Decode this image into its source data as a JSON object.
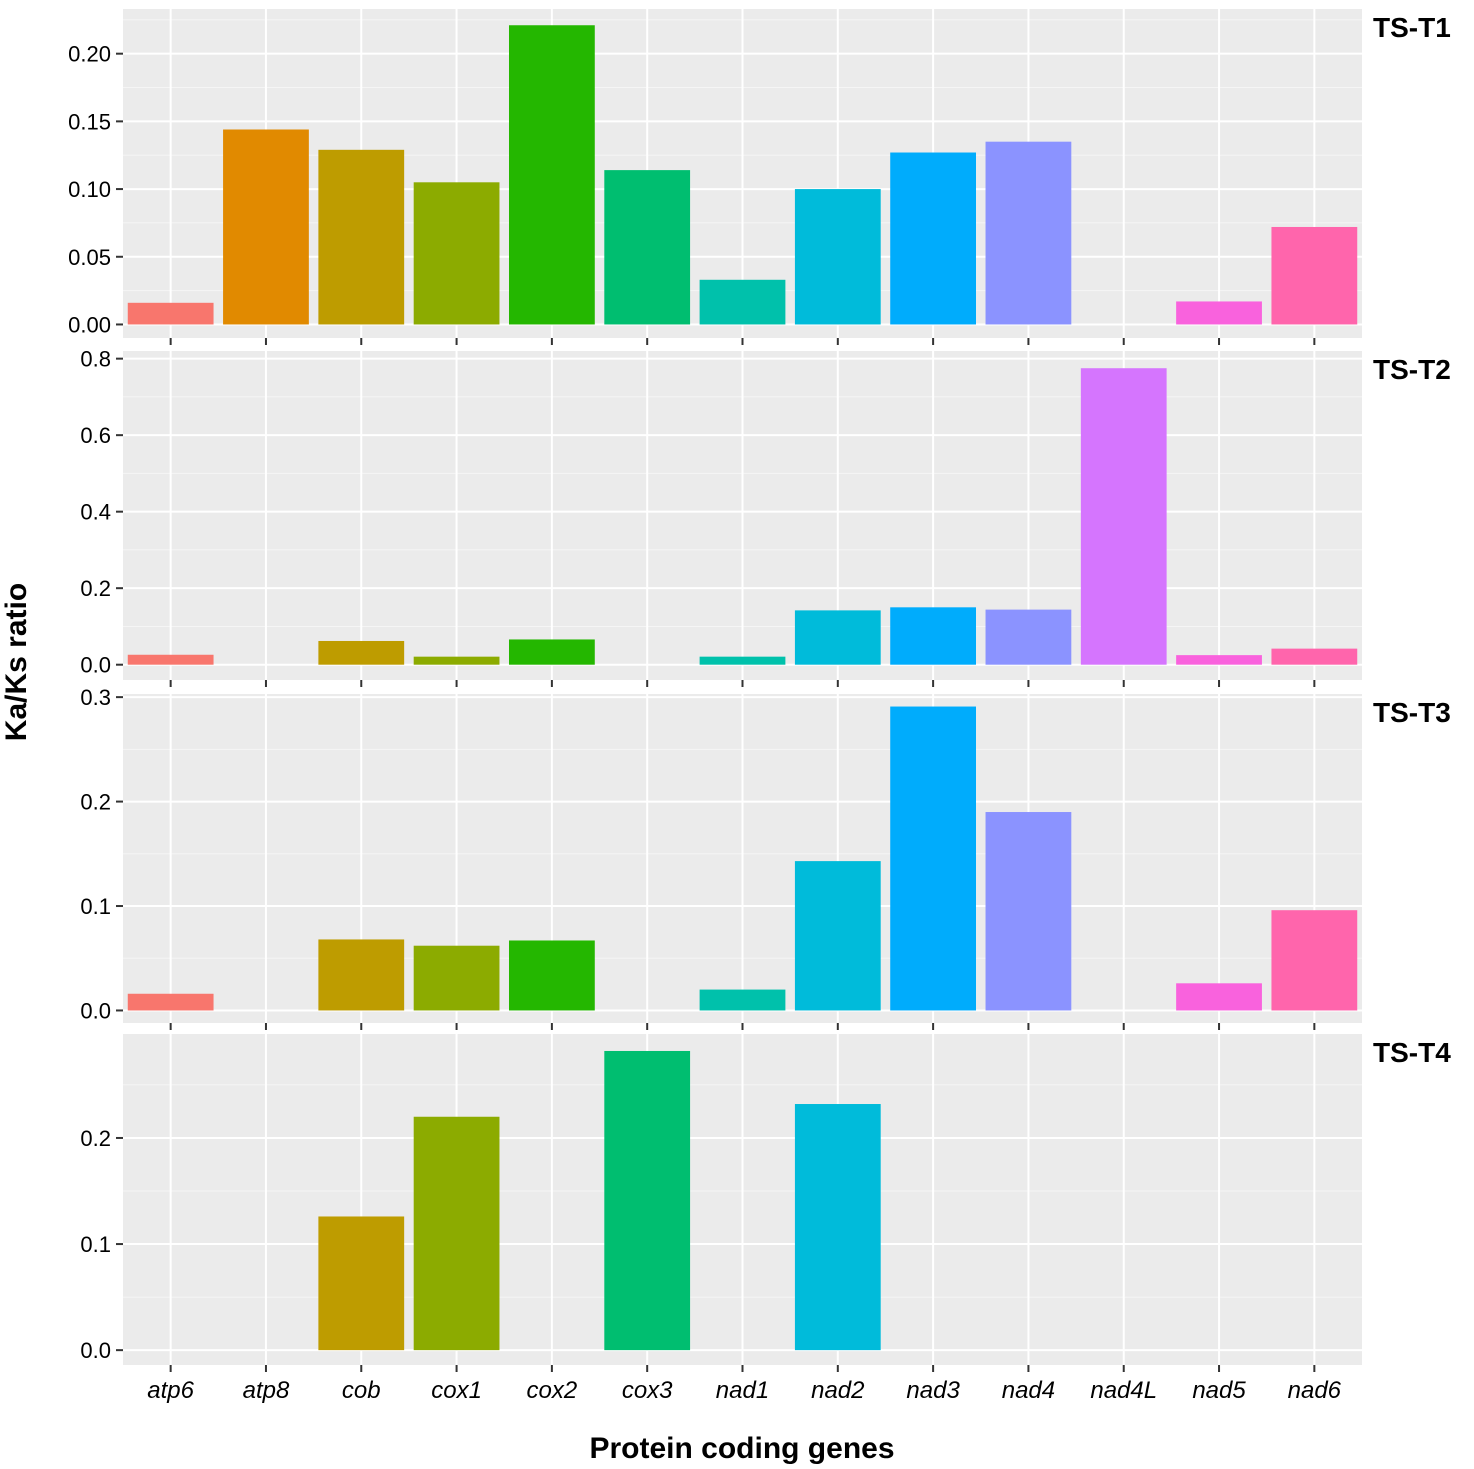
{
  "chart_data": {
    "type": "bar",
    "xlabel": "Protein coding genes",
    "ylabel": "Ka/Ks ratio",
    "categories": [
      "atp6",
      "atp8",
      "cob",
      "cox1",
      "cox2",
      "cox3",
      "nad1",
      "nad2",
      "nad3",
      "nad4",
      "nad4L",
      "nad5",
      "nad6"
    ],
    "colors": [
      "#F8766D",
      "#E18A00",
      "#BE9C00",
      "#8CAB00",
      "#24B700",
      "#00BE70",
      "#00C1AB",
      "#00BBDA",
      "#00ACFC",
      "#8B93FF",
      "#D575FE",
      "#F962DD",
      "#FF65AC"
    ],
    "grid": true,
    "panels": [
      {
        "label": "TS-T1",
        "ylim": [
          -0.01,
          0.233
        ],
        "yticks": [
          0.0,
          0.05,
          0.1,
          0.15,
          0.2
        ],
        "ytick_labels": [
          "0.00",
          "0.05",
          "0.10",
          "0.15",
          "0.20"
        ],
        "values": [
          0.016,
          0.144,
          0.129,
          0.105,
          0.221,
          0.114,
          0.033,
          0.1,
          0.127,
          0.135,
          null,
          0.017,
          0.072
        ]
      },
      {
        "label": "TS-T2",
        "ylim": [
          -0.04,
          0.82
        ],
        "yticks": [
          0.0,
          0.2,
          0.4,
          0.6,
          0.8
        ],
        "ytick_labels": [
          "0.0",
          "0.2",
          "0.4",
          "0.6",
          "0.8"
        ],
        "values": [
          0.026,
          null,
          0.062,
          0.021,
          0.066,
          null,
          0.021,
          0.142,
          0.15,
          0.144,
          0.775,
          0.025,
          0.042
        ]
      },
      {
        "label": "TS-T3",
        "ylim": [
          -0.012,
          0.303
        ],
        "yticks": [
          0.0,
          0.1,
          0.2,
          0.3
        ],
        "ytick_labels": [
          "0.0",
          "0.1",
          "0.2",
          "0.3"
        ],
        "values": [
          0.016,
          null,
          0.068,
          0.062,
          0.067,
          null,
          0.02,
          0.143,
          0.291,
          0.19,
          null,
          0.026,
          0.096
        ]
      },
      {
        "label": "TS-T4",
        "ylim": [
          -0.014,
          0.298
        ],
        "yticks": [
          0.0,
          0.1,
          0.2
        ],
        "ytick_labels": [
          "0.0",
          "0.1",
          "0.2"
        ],
        "values": [
          null,
          null,
          0.126,
          0.22,
          null,
          0.282,
          null,
          0.232,
          null,
          null,
          null,
          null,
          null
        ]
      }
    ]
  }
}
